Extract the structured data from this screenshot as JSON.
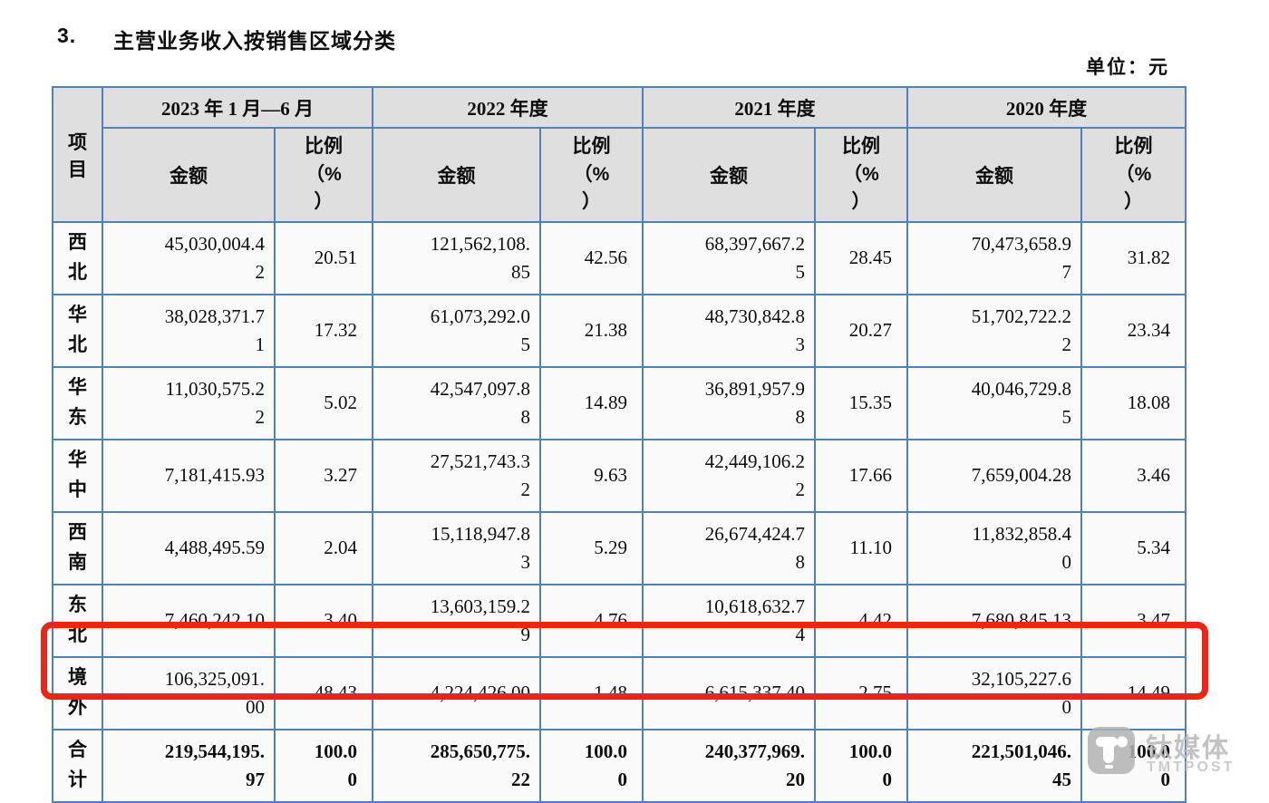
{
  "page": {
    "section_number": "3.",
    "title": "主营业务收入按销售区域分类",
    "unit_label": "单位：元"
  },
  "colors": {
    "table_border": "#4f81bd",
    "header_bg": "#dfdfdf",
    "highlight_box": "#ee2417",
    "watermark": "#b9b9b9"
  },
  "table": {
    "item_header": "项目",
    "amount_header": "金额",
    "ratio_header": "比例\n（%\n）",
    "groups": [
      {
        "label": "2023 年 1 月—6 月"
      },
      {
        "label": "2022 年度"
      },
      {
        "label": "2021 年度"
      },
      {
        "label": "2020 年度"
      }
    ],
    "rows": [
      {
        "region": "西北",
        "bold": false,
        "highlight": false,
        "cells": [
          "45,030,004.4\n2",
          "20.51",
          "121,562,108.\n85",
          "42.56",
          "68,397,667.2\n5",
          "28.45",
          "70,473,658.9\n7",
          "31.82"
        ]
      },
      {
        "region": "华北",
        "bold": false,
        "highlight": false,
        "cells": [
          "38,028,371.7\n1",
          "17.32",
          "61,073,292.0\n5",
          "21.38",
          "48,730,842.8\n3",
          "20.27",
          "51,702,722.2\n2",
          "23.34"
        ]
      },
      {
        "region": "华东",
        "bold": false,
        "highlight": false,
        "cells": [
          "11,030,575.2\n2",
          "5.02",
          "42,547,097.8\n8",
          "14.89",
          "36,891,957.9\n8",
          "15.35",
          "40,046,729.8\n5",
          "18.08"
        ]
      },
      {
        "region": "华中",
        "bold": false,
        "highlight": false,
        "cells": [
          "7,181,415.93",
          "3.27",
          "27,521,743.3\n2",
          "9.63",
          "42,449,106.2\n2",
          "17.66",
          "7,659,004.28",
          "3.46"
        ]
      },
      {
        "region": "西南",
        "bold": false,
        "highlight": false,
        "cells": [
          "4,488,495.59",
          "2.04",
          "15,118,947.8\n3",
          "5.29",
          "26,674,424.7\n8",
          "11.10",
          "11,832,858.4\n0",
          "5.34"
        ]
      },
      {
        "region": "东北",
        "bold": false,
        "highlight": false,
        "cells": [
          "7,460,242.10",
          "3.40",
          "13,603,159.2\n9",
          "4.76",
          "10,618,632.7\n4",
          "4.42",
          "7,680,845.13",
          "3.47"
        ]
      },
      {
        "region": "境外",
        "bold": false,
        "highlight": true,
        "cells": [
          "106,325,091.\n00",
          "48.43",
          "4,224,426.00",
          "1.48",
          "6,615,337.40",
          "2.75",
          "32,105,227.6\n0",
          "14.49"
        ]
      },
      {
        "region": "合计",
        "bold": true,
        "highlight": false,
        "cells": [
          "219,544,195.\n97",
          "100.0\n0",
          "285,650,775.\n22",
          "100.0\n0",
          "240,377,969.\n20",
          "100.0\n0",
          "221,501,046.\n45",
          "100.0\n0"
        ]
      }
    ]
  },
  "watermark": {
    "brand": "钛媒体",
    "brand_sub": "TMTPOST"
  }
}
